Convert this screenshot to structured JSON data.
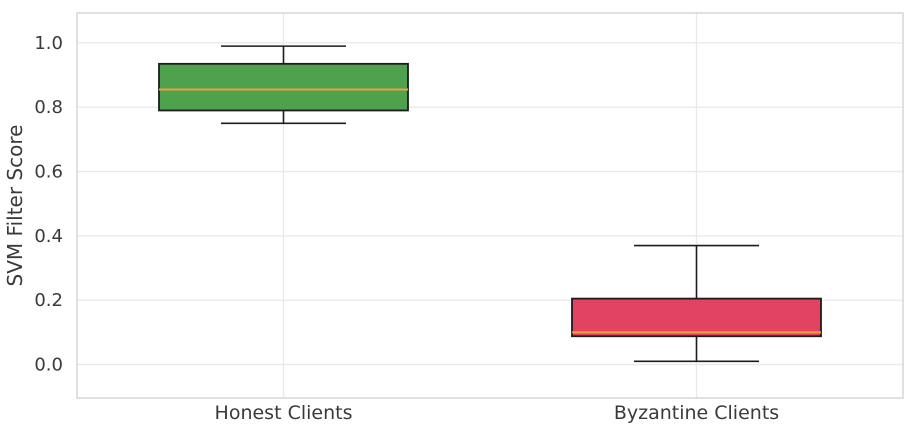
{
  "chart_data": {
    "type": "box",
    "title": "",
    "xlabel": "",
    "ylabel": "SVM Filter Score",
    "categories": [
      "Honest Clients",
      "Byzantine Clients"
    ],
    "y_ticks": [
      0.0,
      0.2,
      0.4,
      0.6,
      0.8,
      1.0
    ],
    "y_tick_labels": [
      "0.0",
      "0.2",
      "0.4",
      "0.6",
      "0.8",
      "1.0"
    ],
    "ylim": [
      -0.104,
      1.093
    ],
    "grid": true,
    "legend": "none",
    "series": [
      {
        "name": "Honest Clients",
        "whisker_low": 0.75,
        "q1": 0.79,
        "median": 0.855,
        "q3": 0.935,
        "whisker_high": 0.99,
        "fill": "#4EA24E"
      },
      {
        "name": "Byzantine Clients",
        "whisker_low": 0.01,
        "q1": 0.088,
        "median": 0.1,
        "q3": 0.205,
        "whisker_high": 0.37,
        "fill": "#E34363"
      }
    ],
    "colors": {
      "median_line": "#E8A33D",
      "box_edge": "#1c1c1c",
      "whisker": "#1c1c1c",
      "gridline": "#e9e9e9",
      "spine": "#d3d3d3",
      "text": "#3a3a3a",
      "background": "#ffffff"
    }
  }
}
